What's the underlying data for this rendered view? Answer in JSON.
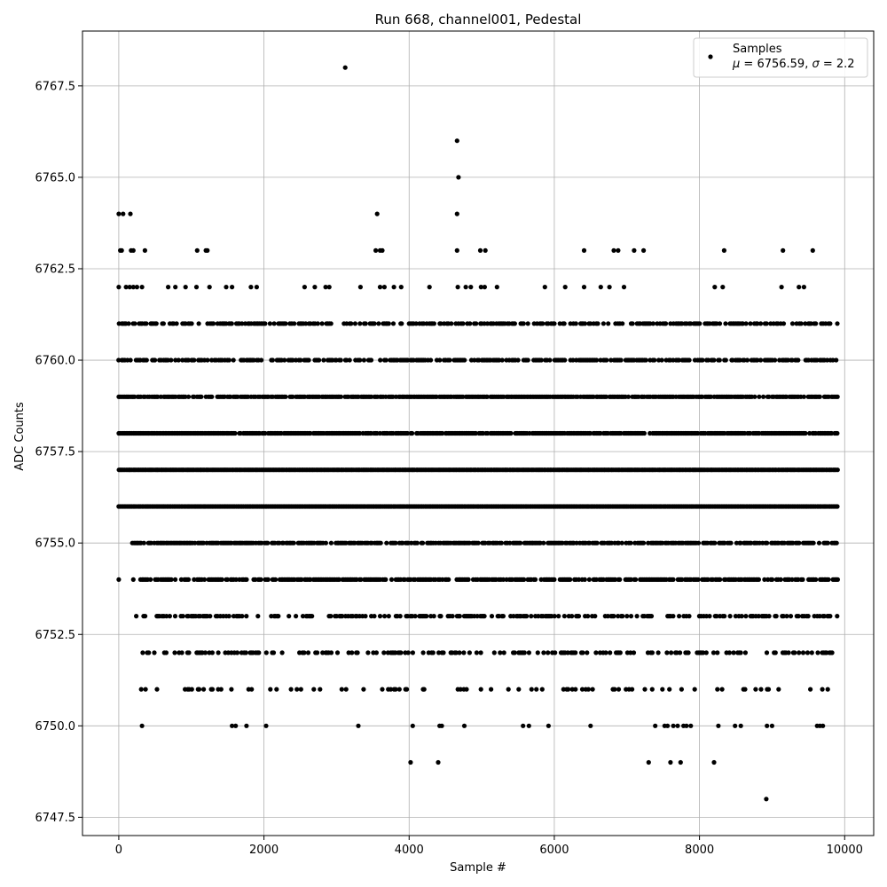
{
  "chart_data": {
    "type": "scatter",
    "title": "Run 668, channel001, Pedestal",
    "xlabel": "Sample #",
    "ylabel": "ADC Counts",
    "xlim": [
      -500,
      10400
    ],
    "ylim": [
      6747,
      6769
    ],
    "xticks": [
      0,
      2000,
      4000,
      6000,
      8000,
      10000
    ],
    "yticks": [
      6747.5,
      6750.0,
      6752.5,
      6755.0,
      6757.5,
      6760.0,
      6762.5,
      6765.0,
      6767.5
    ],
    "xtick_labels": [
      "0",
      "2000",
      "4000",
      "6000",
      "8000",
      "10000"
    ],
    "ytick_labels": [
      "6747.5",
      "6750.0",
      "6752.5",
      "6755.0",
      "6757.5",
      "6760.0",
      "6762.5",
      "6765.0",
      "6767.5"
    ],
    "grid": true,
    "legend_position": "top-right",
    "legend": {
      "label": "Samples",
      "stats_prefix_mu": "μ",
      "stats_mid": " = 6756.59, ",
      "stats_prefix_sigma": "σ",
      "stats_end": " = 2.2"
    },
    "mean": 6756.59,
    "sigma": 2.2,
    "marker_color": "#000000",
    "series": [
      {
        "name": "Samples",
        "points": [
          [
            3120,
            6768
          ],
          [
            4660,
            6766
          ],
          [
            4680,
            6765
          ],
          [
            0,
            6764
          ],
          [
            60,
            6764
          ],
          [
            160,
            6764
          ],
          [
            3560,
            6764
          ],
          [
            4660,
            6764
          ],
          [
            20,
            6763
          ],
          [
            40,
            6763
          ],
          [
            170,
            6763
          ],
          [
            200,
            6763
          ],
          [
            360,
            6763
          ],
          [
            1080,
            6763
          ],
          [
            1200,
            6763
          ],
          [
            1220,
            6763
          ],
          [
            3540,
            6763
          ],
          [
            3600,
            6763
          ],
          [
            3630,
            6763
          ],
          [
            4660,
            6763
          ],
          [
            4980,
            6763
          ],
          [
            5050,
            6763
          ],
          [
            6410,
            6763
          ],
          [
            6820,
            6763
          ],
          [
            6880,
            6763
          ],
          [
            7100,
            6763
          ],
          [
            7230,
            6763
          ],
          [
            8340,
            6763
          ],
          [
            9150,
            6763
          ],
          [
            9560,
            6763
          ],
          [
            0,
            6762
          ],
          [
            100,
            6762
          ],
          [
            150,
            6762
          ],
          [
            200,
            6762
          ],
          [
            250,
            6762
          ],
          [
            320,
            6762
          ],
          [
            680,
            6762
          ],
          [
            780,
            6762
          ],
          [
            920,
            6762
          ],
          [
            1070,
            6762
          ],
          [
            1250,
            6762
          ],
          [
            1480,
            6762
          ],
          [
            1560,
            6762
          ],
          [
            1820,
            6762
          ],
          [
            1900,
            6762
          ],
          [
            2560,
            6762
          ],
          [
            2700,
            6762
          ],
          [
            2850,
            6762
          ],
          [
            2900,
            6762
          ],
          [
            3330,
            6762
          ],
          [
            3600,
            6762
          ],
          [
            3660,
            6762
          ],
          [
            3790,
            6762
          ],
          [
            3890,
            6762
          ],
          [
            4280,
            6762
          ],
          [
            4670,
            6762
          ],
          [
            4780,
            6762
          ],
          [
            4850,
            6762
          ],
          [
            4990,
            6762
          ],
          [
            5040,
            6762
          ],
          [
            5210,
            6762
          ],
          [
            5870,
            6762
          ],
          [
            6150,
            6762
          ],
          [
            6410,
            6762
          ],
          [
            6640,
            6762
          ],
          [
            6760,
            6762
          ],
          [
            6960,
            6762
          ],
          [
            8210,
            6762
          ],
          [
            8320,
            6762
          ],
          [
            9130,
            6762
          ],
          [
            9370,
            6762
          ],
          [
            9440,
            6762
          ],
          [
            0,
            6754
          ],
          [
            200,
            6754
          ],
          [
            9880,
            6754
          ],
          [
            320,
            6750
          ],
          [
            1560,
            6750
          ],
          [
            1610,
            6750
          ],
          [
            1760,
            6750
          ],
          [
            2030,
            6750
          ],
          [
            3300,
            6750
          ],
          [
            4050,
            6750
          ],
          [
            4420,
            6750
          ],
          [
            4450,
            6750
          ],
          [
            4760,
            6750
          ],
          [
            5570,
            6750
          ],
          [
            5650,
            6750
          ],
          [
            5920,
            6750
          ],
          [
            6500,
            6750
          ],
          [
            7390,
            6750
          ],
          [
            7520,
            6750
          ],
          [
            7560,
            6750
          ],
          [
            7640,
            6750
          ],
          [
            7700,
            6750
          ],
          [
            7780,
            6750
          ],
          [
            7820,
            6750
          ],
          [
            7880,
            6750
          ],
          [
            8260,
            6750
          ],
          [
            8490,
            6750
          ],
          [
            8570,
            6750
          ],
          [
            8930,
            6750
          ],
          [
            9000,
            6750
          ],
          [
            9620,
            6750
          ],
          [
            9660,
            6750
          ],
          [
            9700,
            6750
          ],
          [
            4020,
            6749
          ],
          [
            4400,
            6749
          ],
          [
            7300,
            6749
          ],
          [
            7600,
            6749
          ],
          [
            7740,
            6749
          ],
          [
            8200,
            6749
          ],
          [
            8920,
            6748
          ]
        ],
        "dense_rows": [
          {
            "value": 6761,
            "ranges": [
              [
                0,
                9900
              ]
            ],
            "density": 0.55
          },
          {
            "value": 6760,
            "ranges": [
              [
                0,
                9900
              ]
            ],
            "density": 0.55
          },
          {
            "value": 6759,
            "ranges": [
              [
                0,
                9900
              ]
            ],
            "density": 0.85
          },
          {
            "value": 6758,
            "ranges": [
              [
                0,
                9900
              ]
            ],
            "density": 0.9
          },
          {
            "value": 6757,
            "ranges": [
              [
                0,
                9900
              ]
            ],
            "density": 1.0
          },
          {
            "value": 6756,
            "ranges": [
              [
                0,
                9900
              ]
            ],
            "density": 1.0
          },
          {
            "value": 6755,
            "ranges": [
              [
                150,
                9900
              ]
            ],
            "density": 0.75
          },
          {
            "value": 6754,
            "ranges": [
              [
                300,
                9900
              ]
            ],
            "density": 0.7
          },
          {
            "value": 6753,
            "ranges": [
              [
                200,
                9900
              ]
            ],
            "density": 0.45
          },
          {
            "value": 6752,
            "ranges": [
              [
                230,
                9900
              ]
            ],
            "density": 0.35
          },
          {
            "value": 6751,
            "ranges": [
              [
                290,
                9900
              ]
            ],
            "density": 0.2
          }
        ]
      }
    ]
  }
}
